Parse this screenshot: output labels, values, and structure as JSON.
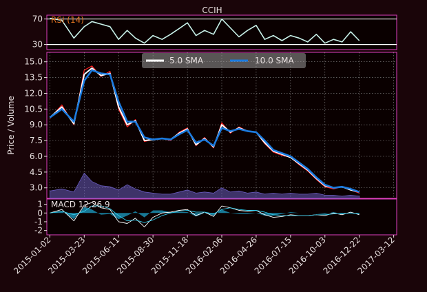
{
  "colors": {
    "background": "#1a0509",
    "panel": "#0a0000",
    "frame": "#e040c0",
    "text": "#e8e0e0",
    "grid": "#cfcfcf",
    "rsi": "#c8f0e8",
    "rsi_label": "#e07020",
    "price": "#ff2020",
    "sma5": "#ffffff",
    "sma10": "#1b7be0",
    "volume": "#6a5cc0",
    "macd": "#ffffff",
    "signal": "#30c8e8",
    "hist": "#1ea0c8"
  },
  "chart_data": [
    {
      "type": "line",
      "panel": "rsi",
      "title": "CCIH",
      "label": "RSI (14)",
      "yticks": [
        30,
        70
      ],
      "ylim": [
        22,
        76
      ],
      "hlines": [
        30,
        70
      ],
      "x": [
        "2015-01-02",
        "2015-01-30",
        "2015-02-27",
        "2015-03-23",
        "2015-04-10",
        "2015-05-01",
        "2015-05-22",
        "2015-06-11",
        "2015-07-01",
        "2015-07-20",
        "2015-08-10",
        "2015-08-30",
        "2015-09-20",
        "2015-10-10",
        "2015-10-30",
        "2015-11-18",
        "2015-12-08",
        "2015-12-28",
        "2016-01-18",
        "2016-02-06",
        "2016-02-26",
        "2016-03-17",
        "2016-04-06",
        "2016-04-26",
        "2016-05-16",
        "2016-06-05",
        "2016-06-25",
        "2016-07-15",
        "2016-08-04",
        "2016-08-24",
        "2016-09-13",
        "2016-10-03",
        "2016-10-23",
        "2016-11-12",
        "2016-12-02",
        "2016-12-22"
      ],
      "values": [
        71,
        68,
        40,
        58,
        66,
        62,
        58,
        38,
        52,
        40,
        32,
        44,
        38,
        46,
        55,
        64,
        44,
        52,
        46,
        70,
        56,
        42,
        52,
        60,
        38,
        44,
        36,
        44,
        40,
        34,
        46,
        32,
        38,
        34,
        50,
        36
      ]
    },
    {
      "type": "line",
      "panel": "price",
      "ylabel": "Price / Volume",
      "yticks": [
        3.0,
        4.5,
        6.0,
        7.5,
        9.0,
        10.5,
        12.0,
        13.5,
        15.0
      ],
      "ylim": [
        2.0,
        15.9
      ],
      "legend": {
        "placement": "top-center",
        "entries": [
          "5.0 SMA",
          "10.0 SMA"
        ]
      },
      "x": [
        "2015-01-02",
        "2015-01-30",
        "2015-02-27",
        "2015-03-23",
        "2015-04-10",
        "2015-05-01",
        "2015-05-22",
        "2015-06-11",
        "2015-07-01",
        "2015-07-20",
        "2015-08-10",
        "2015-08-30",
        "2015-09-20",
        "2015-10-10",
        "2015-10-30",
        "2015-11-18",
        "2015-12-08",
        "2015-12-28",
        "2016-01-18",
        "2016-02-06",
        "2016-02-26",
        "2016-03-17",
        "2016-04-06",
        "2016-04-26",
        "2016-05-16",
        "2016-06-05",
        "2016-06-25",
        "2016-07-15",
        "2016-08-04",
        "2016-08-24",
        "2016-09-13",
        "2016-10-03",
        "2016-10-23",
        "2016-11-12",
        "2016-12-02",
        "2016-12-22"
      ],
      "series": [
        {
          "name": "Price",
          "values": [
            9.6,
            10.9,
            9.0,
            14.2,
            14.6,
            13.6,
            14.1,
            10.5,
            8.8,
            9.5,
            7.4,
            7.6,
            7.7,
            7.5,
            8.3,
            8.7,
            7.0,
            7.8,
            6.8,
            9.2,
            8.2,
            8.8,
            8.4,
            8.3,
            7.2,
            6.4,
            6.1,
            5.9,
            5.2,
            4.6,
            3.8,
            3.1,
            2.9,
            3.1,
            2.8,
            2.5
          ]
        },
        {
          "name": "5.0 SMA",
          "values": [
            9.7,
            10.7,
            9.1,
            13.8,
            14.4,
            13.7,
            13.9,
            10.7,
            9.0,
            9.4,
            7.5,
            7.6,
            7.7,
            7.6,
            8.2,
            8.6,
            7.1,
            7.7,
            6.9,
            9.0,
            8.3,
            8.7,
            8.4,
            8.3,
            7.3,
            6.5,
            6.2,
            5.9,
            5.3,
            4.7,
            3.9,
            3.2,
            3.0,
            3.1,
            2.8,
            2.6
          ]
        },
        {
          "name": "10.0 SMA",
          "values": [
            9.7,
            10.5,
            9.3,
            13.2,
            14.2,
            13.9,
            13.8,
            11.2,
            9.3,
            9.3,
            7.8,
            7.6,
            7.7,
            7.6,
            8.1,
            8.5,
            7.3,
            7.6,
            7.0,
            8.7,
            8.4,
            8.6,
            8.4,
            8.3,
            7.5,
            6.6,
            6.3,
            6.0,
            5.4,
            4.8,
            4.0,
            3.3,
            3.0,
            3.1,
            2.9,
            2.6
          ]
        },
        {
          "name": "Volume",
          "values": [
            2.7,
            2.9,
            2.6,
            4.4,
            3.6,
            3.2,
            3.1,
            2.8,
            3.3,
            2.9,
            2.6,
            2.5,
            2.4,
            2.4,
            2.6,
            2.8,
            2.5,
            2.6,
            2.5,
            3.0,
            2.6,
            2.7,
            2.5,
            2.6,
            2.4,
            2.5,
            2.4,
            2.5,
            2.4,
            2.4,
            2.5,
            2.3,
            2.3,
            2.2,
            2.3,
            2.2
          ]
        }
      ]
    },
    {
      "type": "line",
      "panel": "macd",
      "label": "MACD 12,26,9",
      "yticks": [
        -2,
        -1,
        0,
        1
      ],
      "ylim": [
        -2.5,
        1.6
      ],
      "x": [
        "2015-01-02",
        "2015-01-30",
        "2015-02-27",
        "2015-03-23",
        "2015-04-10",
        "2015-05-01",
        "2015-05-22",
        "2015-06-11",
        "2015-07-01",
        "2015-07-20",
        "2015-08-10",
        "2015-08-30",
        "2015-09-20",
        "2015-10-10",
        "2015-10-30",
        "2015-11-18",
        "2015-12-08",
        "2015-12-28",
        "2016-01-18",
        "2016-02-06",
        "2016-02-26",
        "2016-03-17",
        "2016-04-06",
        "2016-04-26",
        "2016-05-16",
        "2016-06-05",
        "2016-06-25",
        "2016-07-15",
        "2016-08-04",
        "2016-08-24",
        "2016-09-13",
        "2016-10-03",
        "2016-10-23",
        "2016-11-12",
        "2016-12-02",
        "2016-12-22"
      ],
      "series": [
        {
          "name": "MACD",
          "values": [
            0.0,
            0.4,
            -0.9,
            0.9,
            1.2,
            0.6,
            0.4,
            -1.0,
            -1.2,
            -0.6,
            -1.6,
            -0.5,
            0.0,
            0.1,
            0.3,
            0.4,
            -0.3,
            0.1,
            -0.4,
            0.8,
            0.6,
            0.3,
            0.2,
            0.3,
            -0.2,
            -0.5,
            -0.4,
            -0.2,
            -0.3,
            -0.3,
            -0.2,
            -0.3,
            0.0,
            -0.2,
            0.1,
            -0.2
          ]
        },
        {
          "name": "Signal",
          "values": [
            0.0,
            0.2,
            -0.2,
            0.2,
            0.8,
            0.8,
            0.5,
            -0.3,
            -0.9,
            -0.8,
            -1.1,
            -0.8,
            -0.3,
            0.0,
            0.2,
            0.3,
            0.1,
            0.1,
            -0.1,
            0.4,
            0.6,
            0.4,
            0.3,
            0.3,
            0.1,
            -0.2,
            -0.3,
            -0.3,
            -0.3,
            -0.3,
            -0.2,
            -0.2,
            -0.1,
            -0.1,
            0.0,
            -0.1
          ]
        },
        {
          "name": "Histogram",
          "values": [
            0.0,
            0.2,
            -0.7,
            0.7,
            0.4,
            -0.2,
            -0.1,
            -0.7,
            -0.3,
            0.2,
            -0.5,
            0.3,
            0.3,
            0.1,
            0.1,
            0.1,
            -0.4,
            0.0,
            -0.3,
            0.4,
            0.0,
            -0.1,
            -0.1,
            0.0,
            -0.3,
            -0.3,
            -0.1,
            0.1,
            0.0,
            0.0,
            0.0,
            -0.1,
            0.1,
            -0.1,
            0.1,
            -0.1
          ]
        }
      ]
    }
  ],
  "xaxis": {
    "ticks": [
      "2015-01-02",
      "2015-03-23",
      "2015-06-11",
      "2015-08-30",
      "2015-11-18",
      "2016-02-06",
      "2016-04-26",
      "2016-07-15",
      "2016-10-03",
      "2016-12-22",
      "2017-03-12"
    ]
  }
}
